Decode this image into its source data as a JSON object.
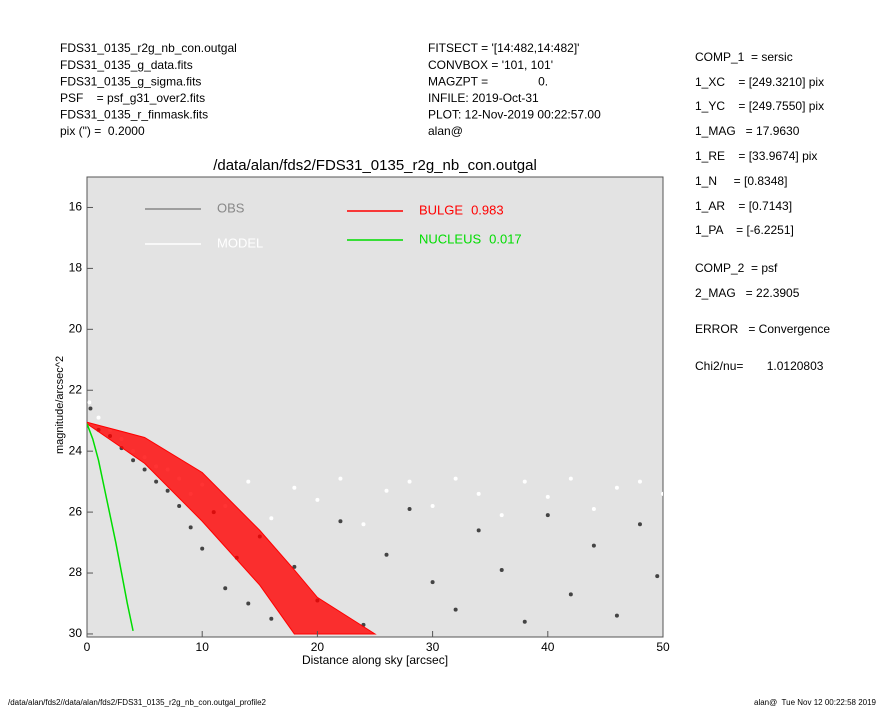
{
  "header": {
    "left": [
      "FDS31_0135_r2g_nb_con.outgal",
      "FDS31_0135_g_data.fits",
      "FDS31_0135_g_sigma.fits",
      "PSF    = psf_g31_over2.fits",
      "FDS31_0135_r_finmask.fits",
      "pix (\") =  0.2000"
    ],
    "middle": [
      "FITSECT = '[14:482,14:482]'",
      "CONVBOX = '101, 101'",
      "MAGZPT =               0.",
      "INFILE: 2019-Oct-31",
      "PLOT: 12-Nov-2019 00:22:57.00",
      "alan@"
    ],
    "right": [
      "COMP_1  = sersic",
      "1_XC    = [249.3210] pix",
      "1_YC    = [249.7550] pix",
      "1_MAG   = 17.9630",
      "1_RE    = [33.9674] pix",
      "1_N     = [0.8348]",
      "1_AR    = [0.7143]",
      "1_PA    = [-6.2251]",
      "COMP_2  = psf",
      "2_MAG   = 22.3905",
      "ERROR   = Convergence",
      "Chi2/nu=       1.0120803"
    ]
  },
  "footer": {
    "left": "/data/alan/fds2//data/alan/fds2/FDS31_0135_r2g_nb_con.outgal_profile2",
    "right": "alan@  Tue Nov 12 00:22:58 2019"
  },
  "chart_data": {
    "type": "scatter",
    "title": "/data/alan/fds2/FDS31_0135_r2g_nb_con.outgal",
    "x_label": "Distance along sky [arcsec]",
    "y_label": "magnitude/arcsec^2",
    "xlim": [
      0,
      50
    ],
    "ylim": [
      30.1,
      15
    ],
    "xticks": [
      0,
      10,
      20,
      30,
      40,
      50
    ],
    "yticks": [
      16,
      18,
      20,
      22,
      24,
      26,
      28,
      30
    ],
    "series": [
      {
        "name": "OBS",
        "kind": "scatter",
        "color": "#444444",
        "legend_color": "#888888",
        "x": [
          0.3,
          1,
          2,
          3,
          4,
          5,
          6,
          7,
          8,
          9,
          10,
          11,
          12,
          13,
          14,
          15,
          16,
          18,
          20,
          22,
          24,
          26,
          28,
          30,
          32,
          34,
          36,
          38,
          40,
          42,
          44,
          46,
          48,
          49.5
        ],
        "values": [
          22.6,
          23.3,
          23.5,
          23.9,
          24.3,
          24.6,
          25.0,
          25.3,
          25.8,
          26.5,
          27.2,
          26.0,
          28.5,
          27.5,
          29.0,
          26.8,
          29.5,
          27.8,
          28.9,
          26.3,
          29.7,
          27.4,
          25.9,
          28.3,
          29.2,
          26.6,
          27.9,
          29.6,
          26.1,
          28.7,
          27.1,
          29.4,
          26.4,
          28.1
        ]
      },
      {
        "name": "MODEL",
        "kind": "scatter",
        "color": "#ffffff",
        "legend_color": "#ffffff",
        "x": [
          0.2,
          1,
          2,
          3,
          4,
          5,
          6,
          7,
          8,
          9,
          10,
          12,
          14,
          16,
          18,
          20,
          22,
          24,
          26,
          28,
          30,
          32,
          34,
          36,
          38,
          40,
          42,
          44,
          46,
          48,
          50
        ],
        "values": [
          22.4,
          22.9,
          23.3,
          23.6,
          24.0,
          24.2,
          24.5,
          24.6,
          24.9,
          25.4,
          25.1,
          25.8,
          25.0,
          26.2,
          25.2,
          25.6,
          24.9,
          26.4,
          25.3,
          25.0,
          25.8,
          24.9,
          25.4,
          26.1,
          25.0,
          25.5,
          24.9,
          25.9,
          25.2,
          25.0,
          25.4
        ]
      },
      {
        "name": "BULGE",
        "fraction": 0.983,
        "kind": "band",
        "color": "#ff0000",
        "x": [
          0,
          5,
          10,
          15,
          18,
          20,
          25
        ],
        "values": [
          23.05,
          23.55,
          24.7,
          26.6,
          27.9,
          28.8,
          30.0
        ],
        "faint_x": [
          0,
          5,
          10,
          15,
          18
        ],
        "faint_values": [
          23.1,
          24.4,
          26.3,
          28.4,
          30.0
        ]
      },
      {
        "name": "NUCLEUS",
        "fraction": 0.017,
        "kind": "line",
        "color": "#00dd00",
        "x": [
          0,
          0.5,
          1,
          1.5,
          2,
          2.5,
          3,
          3.5,
          4
        ],
        "values": [
          23.1,
          23.6,
          24.3,
          25.2,
          26.1,
          27.0,
          28.0,
          29.0,
          29.9
        ]
      }
    ]
  }
}
